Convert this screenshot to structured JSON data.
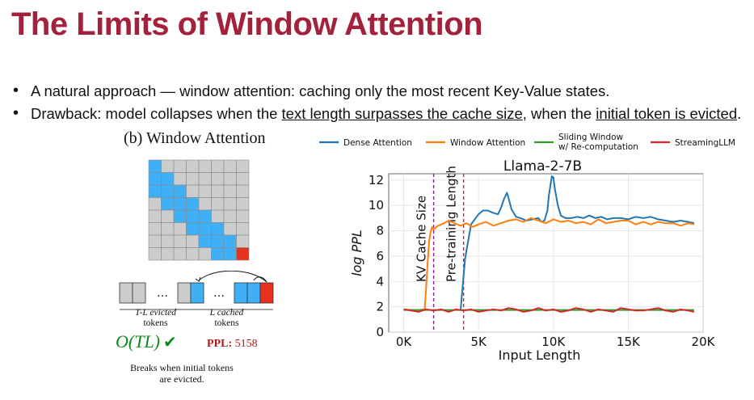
{
  "slide": {
    "title": "The Limits of Window Attention",
    "bullet1": "A natural approach — window attention: caching only the most recent Key-Value states.",
    "bullet2_a": "Drawback: model collapses when the ",
    "bullet2_u1": "text length surpasses the cache size",
    "bullet2_b": ", when the ",
    "bullet2_u2": "initial token is evicted",
    "bullet2_c": "."
  },
  "diagram": {
    "title": "(b) Window Attention",
    "ellipsis": "…",
    "evicted_label_1": "T-L evicted",
    "evicted_label_2": "tokens",
    "cached_label_1": "L cached",
    "cached_label_2": "tokens",
    "complexity": "O(TL)",
    "check": "✔",
    "ppl_label": "PPL:",
    "ppl_value": " 5158",
    "note": "Breaks when initial tokens are evicted.",
    "colors": {
      "cached": "#3fb0f5",
      "evicted": "#cccccc",
      "current": "#e8301f",
      "grid": "#8a8a8a"
    }
  },
  "chart_data": {
    "type": "line",
    "title": "Llama-2-7B",
    "xlabel": "Input Length",
    "ylabel": "log PPL",
    "xlim": [
      -1000,
      20000
    ],
    "ylim": [
      0,
      12.5
    ],
    "xticks": [
      0,
      5000,
      10000,
      15000,
      20000
    ],
    "xtick_labels": [
      "0K",
      "5K",
      "10K",
      "15K",
      "20K"
    ],
    "yticks": [
      0,
      2,
      4,
      6,
      8,
      10,
      12
    ],
    "ytick_labels": [
      "0",
      "2",
      "4",
      "6",
      "8",
      "10",
      "12"
    ],
    "grid": true,
    "legend_position": "top",
    "annotations": [
      {
        "label": "KV Cache Size",
        "x": 2000,
        "color": "#8b1a9c"
      },
      {
        "label": "Pre-training Length",
        "x": 4000,
        "color": "#c62828"
      }
    ],
    "series": [
      {
        "name": "Dense Attention",
        "color": "#1f77b4",
        "x": [
          3800,
          4100,
          4500,
          5000,
          5300,
          5600,
          6000,
          6300,
          6500,
          6700,
          6900,
          7000,
          7200,
          7500,
          7800,
          8200,
          8600,
          9000,
          9200,
          9400,
          9600,
          9700,
          9800,
          9900,
          10000,
          10100,
          10300,
          10500,
          10800,
          11200,
          11600,
          12000,
          12400,
          12800,
          13200,
          13600,
          14000,
          14500,
          15000,
          15500,
          16000,
          16500,
          17000,
          17500,
          18000,
          18500,
          19000,
          19400
        ],
        "y": [
          1.7,
          5.8,
          8.5,
          9.3,
          9.6,
          9.6,
          9.4,
          9.3,
          9.8,
          10.5,
          11.0,
          10.6,
          9.7,
          9.1,
          9.0,
          8.8,
          8.9,
          9.0,
          8.7,
          8.8,
          9.6,
          10.8,
          11.6,
          12.3,
          12.2,
          11.3,
          10.0,
          9.2,
          9.0,
          9.0,
          9.1,
          9.0,
          9.2,
          9.0,
          9.1,
          8.9,
          9.0,
          9.0,
          8.9,
          9.1,
          9.0,
          9.1,
          8.9,
          8.8,
          8.7,
          8.8,
          8.7,
          8.6
        ]
      },
      {
        "name": "Window Attention",
        "color": "#ff7f0e",
        "x": [
          0,
          800,
          1400,
          1500,
          1600,
          1700,
          1800,
          1900,
          2000,
          2300,
          2700,
          3000,
          3400,
          3800,
          4200,
          4600,
          5000,
          5500,
          6000,
          6500,
          7000,
          7500,
          8000,
          8500,
          9000,
          9500,
          10000,
          10500,
          11000,
          11500,
          12000,
          12500,
          13000,
          13500,
          14000,
          14500,
          15000,
          15500,
          16000,
          16500,
          17000,
          17500,
          18000,
          18500,
          19000,
          19400
        ],
        "y": [
          1.8,
          1.7,
          1.8,
          3.5,
          5.5,
          7.2,
          7.9,
          8.3,
          8.1,
          8.4,
          8.6,
          8.8,
          8.6,
          8.4,
          8.6,
          8.3,
          8.5,
          8.7,
          8.4,
          8.6,
          8.8,
          8.9,
          8.7,
          9.0,
          8.8,
          8.6,
          8.9,
          8.7,
          8.8,
          8.6,
          8.7,
          8.5,
          8.9,
          8.6,
          8.7,
          8.8,
          8.8,
          8.5,
          8.7,
          8.5,
          8.7,
          8.6,
          8.6,
          8.4,
          8.6,
          8.5
        ]
      },
      {
        "name": "Sliding Window\nw/ Re-computation",
        "color": "#2ca02c",
        "x": [
          0,
          19400
        ],
        "y": [
          1.75,
          1.75
        ]
      },
      {
        "name": "StreamingLLM",
        "color": "#d62728",
        "x": [
          0,
          500,
          1000,
          1500,
          2000,
          2500,
          3000,
          3500,
          4000,
          4500,
          5000,
          5500,
          6000,
          6500,
          7000,
          7500,
          8000,
          8500,
          9000,
          9500,
          10000,
          10500,
          11000,
          11500,
          12000,
          12500,
          13000,
          13500,
          14000,
          14500,
          15000,
          15500,
          16000,
          16500,
          17000,
          17500,
          18000,
          18500,
          19000,
          19400
        ],
        "y": [
          1.8,
          1.7,
          1.6,
          1.8,
          1.7,
          1.8,
          1.6,
          1.8,
          1.7,
          1.8,
          1.6,
          1.7,
          1.8,
          1.7,
          1.9,
          1.8,
          1.6,
          1.7,
          1.9,
          1.7,
          1.8,
          1.6,
          1.7,
          1.9,
          1.8,
          1.6,
          1.8,
          1.7,
          1.6,
          1.9,
          1.8,
          1.7,
          1.7,
          1.8,
          1.9,
          1.7,
          1.6,
          1.8,
          1.7,
          1.6
        ]
      }
    ]
  }
}
